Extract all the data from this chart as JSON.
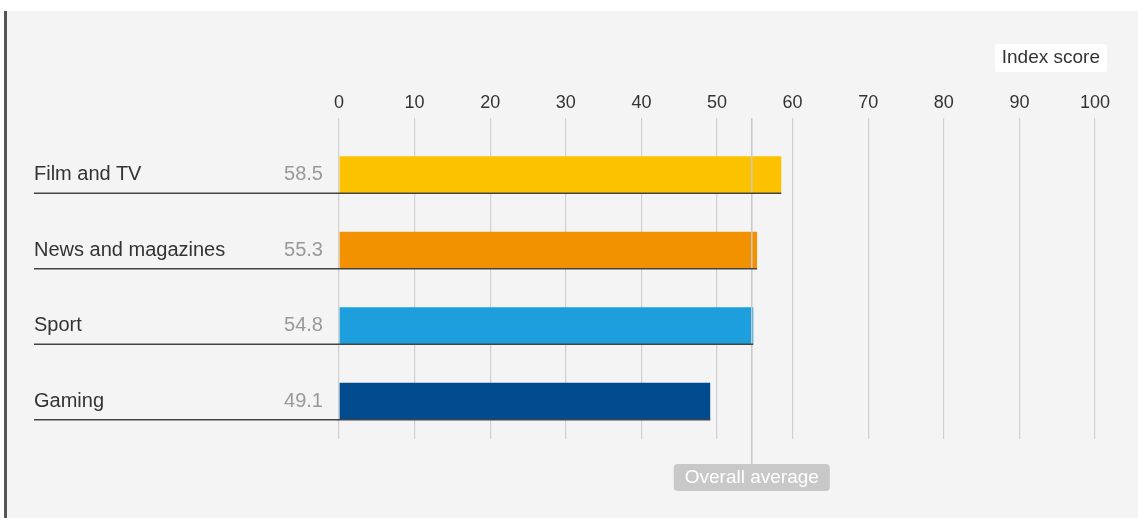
{
  "chart_data": {
    "type": "bar",
    "orientation": "horizontal",
    "xlabel": "Index score",
    "categories": [
      "Film and TV",
      "News and magazines",
      "Sport",
      "Gaming"
    ],
    "values": [
      58.5,
      55.3,
      54.8,
      49.1
    ],
    "colors": [
      "#fcc200",
      "#f39200",
      "#1c9fdc",
      "#004b8d"
    ],
    "xlim": [
      0,
      100
    ],
    "xticks": [
      0,
      10,
      20,
      30,
      40,
      50,
      60,
      70,
      80,
      90,
      100
    ],
    "grid": "x",
    "legend": false,
    "data_labels": true,
    "ref_lines": [
      {
        "axis": "x",
        "value": 54.6,
        "label": "Overall average",
        "color": "#c8c8c8"
      }
    ]
  }
}
